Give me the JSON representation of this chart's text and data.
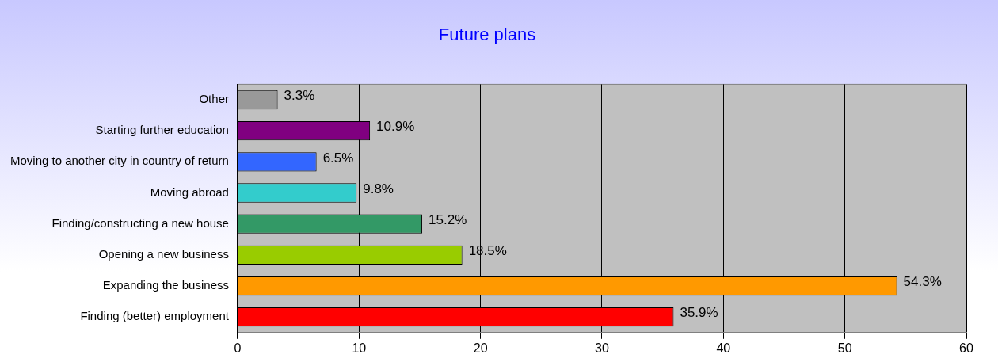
{
  "chart_data": {
    "type": "bar",
    "orientation": "horizontal",
    "title": "Future plans",
    "categories": [
      "Other",
      "Starting further education",
      "Moving to another city in country of return",
      "Moving abroad",
      "Finding/constructing a new house",
      "Opening a new business",
      "Expanding the business",
      "Finding (better) employment"
    ],
    "values": [
      3.3,
      10.9,
      6.5,
      9.8,
      15.2,
      18.5,
      54.3,
      35.9
    ],
    "colors": [
      "#999999",
      "#800080",
      "#3366ff",
      "#33cccc",
      "#339966",
      "#99cc00",
      "#ff9900",
      "#ff0000"
    ],
    "value_labels": [
      "3.3%",
      "10.9%",
      "6.5%",
      "9.8%",
      "15.2%",
      "18.5%",
      "54.3%",
      "35.9%"
    ],
    "xlim": [
      0,
      60
    ],
    "xticks": [
      0,
      10,
      20,
      30,
      40,
      50,
      60
    ],
    "grid": "x",
    "legend": false
  }
}
